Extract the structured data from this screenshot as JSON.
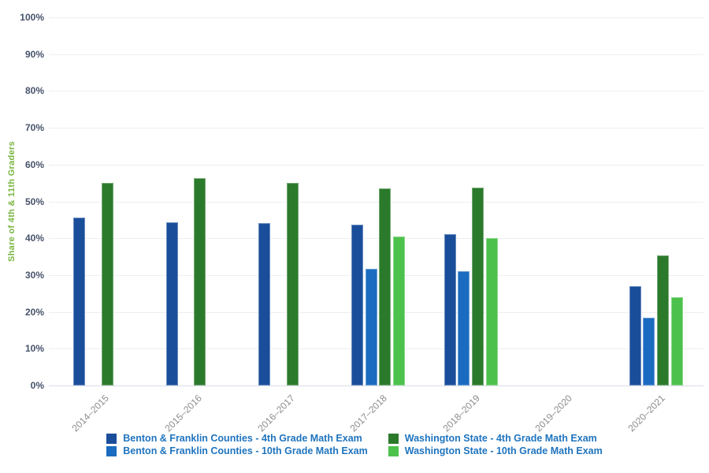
{
  "chart_data": {
    "type": "bar",
    "title": "",
    "xlabel": "",
    "ylabel": "Share of 4th & 11th Graders",
    "ylim": [
      0,
      100
    ],
    "grid": true,
    "legend_position": "bottom",
    "y_tick_labels": [
      "0%",
      "10%",
      "20%",
      "30%",
      "40%",
      "50%",
      "60%",
      "70%",
      "80%",
      "90%",
      "100%"
    ],
    "categories": [
      "2014–2015",
      "2015–2016",
      "2016–2017",
      "2017–2018",
      "2018–2019",
      "2019–2020",
      "2020–2021"
    ],
    "series": [
      {
        "name": "Benton & Franklin Counties - 4th Grade Math Exam",
        "color": "#1a4e9b",
        "values": [
          45.6,
          44.3,
          44.2,
          43.7,
          41.2,
          null,
          27.0
        ]
      },
      {
        "name": "Benton & Franklin Counties - 10th Grade Math Exam",
        "color": "#1b6cc0",
        "values": [
          null,
          null,
          null,
          31.7,
          31.1,
          null,
          18.4
        ]
      },
      {
        "name": "Washington State - 4th Grade Math Exam",
        "color": "#2b7a2b",
        "values": [
          55.1,
          56.3,
          55.1,
          53.6,
          53.8,
          null,
          35.4
        ]
      },
      {
        "name": "Washington State - 10th Grade Math Exam",
        "color": "#4cc24c",
        "values": [
          null,
          null,
          null,
          40.4,
          40.0,
          null,
          24.0
        ]
      }
    ]
  },
  "colors": {
    "background": "#ffffff",
    "gridline": "#efeff3",
    "zero_line": "#d9dee8",
    "y_tick_text": "#47536b",
    "x_label_text": "#8c8c8c",
    "y_title_text": "#77b43f",
    "legend_text": "#1f74be"
  }
}
